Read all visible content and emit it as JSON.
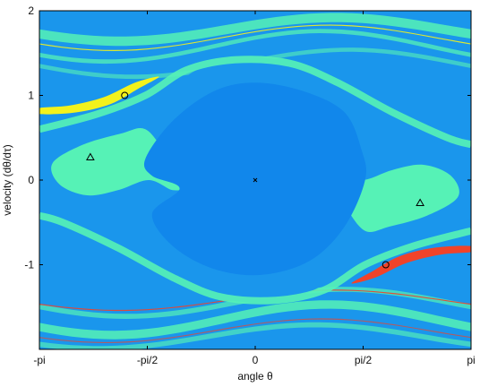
{
  "chart_data": {
    "type": "heatmap",
    "title": "",
    "xlabel": "angle θ",
    "ylabel": "velocity (dθ/dτ)",
    "xlim": [
      -3.1416,
      3.1416
    ],
    "ylim": [
      -2,
      2
    ],
    "x_ticks": [
      {
        "value": -3.1416,
        "label": "-pi"
      },
      {
        "value": -1.5708,
        "label": "-pi/2"
      },
      {
        "value": 0,
        "label": "0"
      },
      {
        "value": 1.5708,
        "label": "pi/2"
      },
      {
        "value": 3.1416,
        "label": "pi"
      }
    ],
    "y_ticks": [
      {
        "value": 2,
        "label": "2"
      },
      {
        "value": 1,
        "label": "1"
      },
      {
        "value": 0,
        "label": "0"
      },
      {
        "value": -1,
        "label": "-1"
      }
    ],
    "regions": [
      {
        "name": "background",
        "color": "#1a96ec"
      },
      {
        "name": "central-basin",
        "color": "#1187eb"
      },
      {
        "name": "mint-basin",
        "color": "#56f2b6"
      },
      {
        "name": "yellow-basin",
        "color": "#f3f21c"
      },
      {
        "name": "red-basin",
        "color": "#f0432a"
      }
    ],
    "markers": [
      {
        "symbol": "x",
        "x": 0,
        "y": 0,
        "color": "#000000"
      },
      {
        "symbol": "circle",
        "x": -1.9,
        "y": 1.0,
        "color": "#000000"
      },
      {
        "symbol": "circle",
        "x": 1.9,
        "y": -1.0,
        "color": "#000000"
      },
      {
        "symbol": "triangle",
        "x": -2.4,
        "y": 0.27,
        "color": "#000000"
      },
      {
        "symbol": "triangle",
        "x": 2.4,
        "y": -0.27,
        "color": "#000000"
      }
    ],
    "grid": false,
    "legend": "none"
  }
}
